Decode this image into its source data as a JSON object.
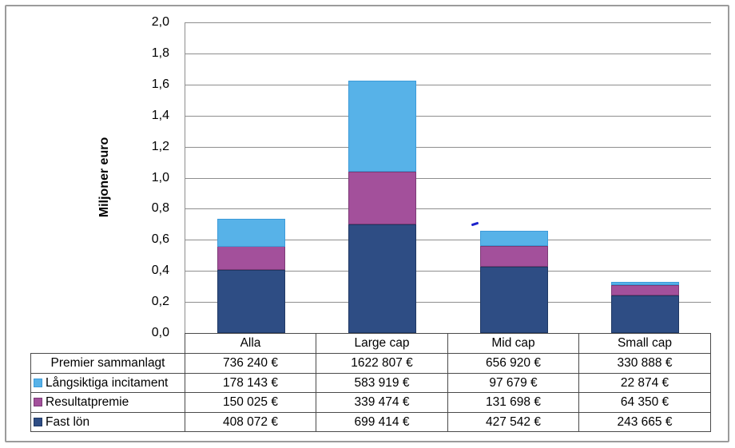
{
  "chart": {
    "yticks": [
      "2,0",
      "1,8",
      "1,6",
      "1,4",
      "1,2",
      "1,0",
      "0,8",
      "0,6",
      "0,4",
      "0,2",
      "0,0"
    ],
    "gridline_color": "#8e8e8e",
    "frame_color": "#9b9b9b"
  },
  "chart_data": {
    "type": "bar",
    "stacked": true,
    "title": "",
    "xlabel": "",
    "ylabel": "Miljoner euro",
    "ylim": [
      0,
      2
    ],
    "ytick_step": 0.2,
    "grid": true,
    "legend_position": "table-below",
    "categories": [
      "Alla",
      "Large cap",
      "Mid cap",
      "Small cap"
    ],
    "series": [
      {
        "name": "Fast lön",
        "color": "#2E4D84",
        "border_color": "#1F3864",
        "values_eur": [
          408072,
          699414,
          427542,
          243665
        ],
        "values_meur": [
          0.408072,
          0.699414,
          0.427542,
          0.243665
        ]
      },
      {
        "name": "Resultatpremie",
        "color": "#A3509B",
        "border_color": "#7C3B76",
        "values_eur": [
          150025,
          339474,
          131698,
          64350
        ],
        "values_meur": [
          0.150025,
          0.339474,
          0.131698,
          0.06435
        ]
      },
      {
        "name": "Långsiktiga incitament",
        "color": "#57B2E8",
        "border_color": "#3C9BD9",
        "values_eur": [
          178143,
          583919,
          97679,
          22874
        ],
        "values_meur": [
          0.178143,
          0.583919,
          0.097679,
          0.022874
        ]
      }
    ],
    "totals_eur": [
      736240,
      1622807,
      656920,
      330888
    ]
  },
  "table": {
    "rows": [
      {
        "label": "Premier sammanlagt",
        "swatch": null,
        "values": [
          "736 240 €",
          "1622 807 €",
          "656 920 €",
          "330 888 €"
        ]
      },
      {
        "label": "Långsiktiga incitament",
        "swatch": 2,
        "values": [
          "178 143 €",
          "583 919 €",
          "97 679 €",
          "22 874 €"
        ]
      },
      {
        "label": "Resultatpremie",
        "swatch": 1,
        "values": [
          "150 025 €",
          "339 474 €",
          "131 698 €",
          "64 350 €"
        ]
      },
      {
        "label": "Fast lön",
        "swatch": 0,
        "values": [
          "408 072 €",
          "699 414 €",
          "427 542 €",
          "243 665 €"
        ]
      }
    ]
  }
}
